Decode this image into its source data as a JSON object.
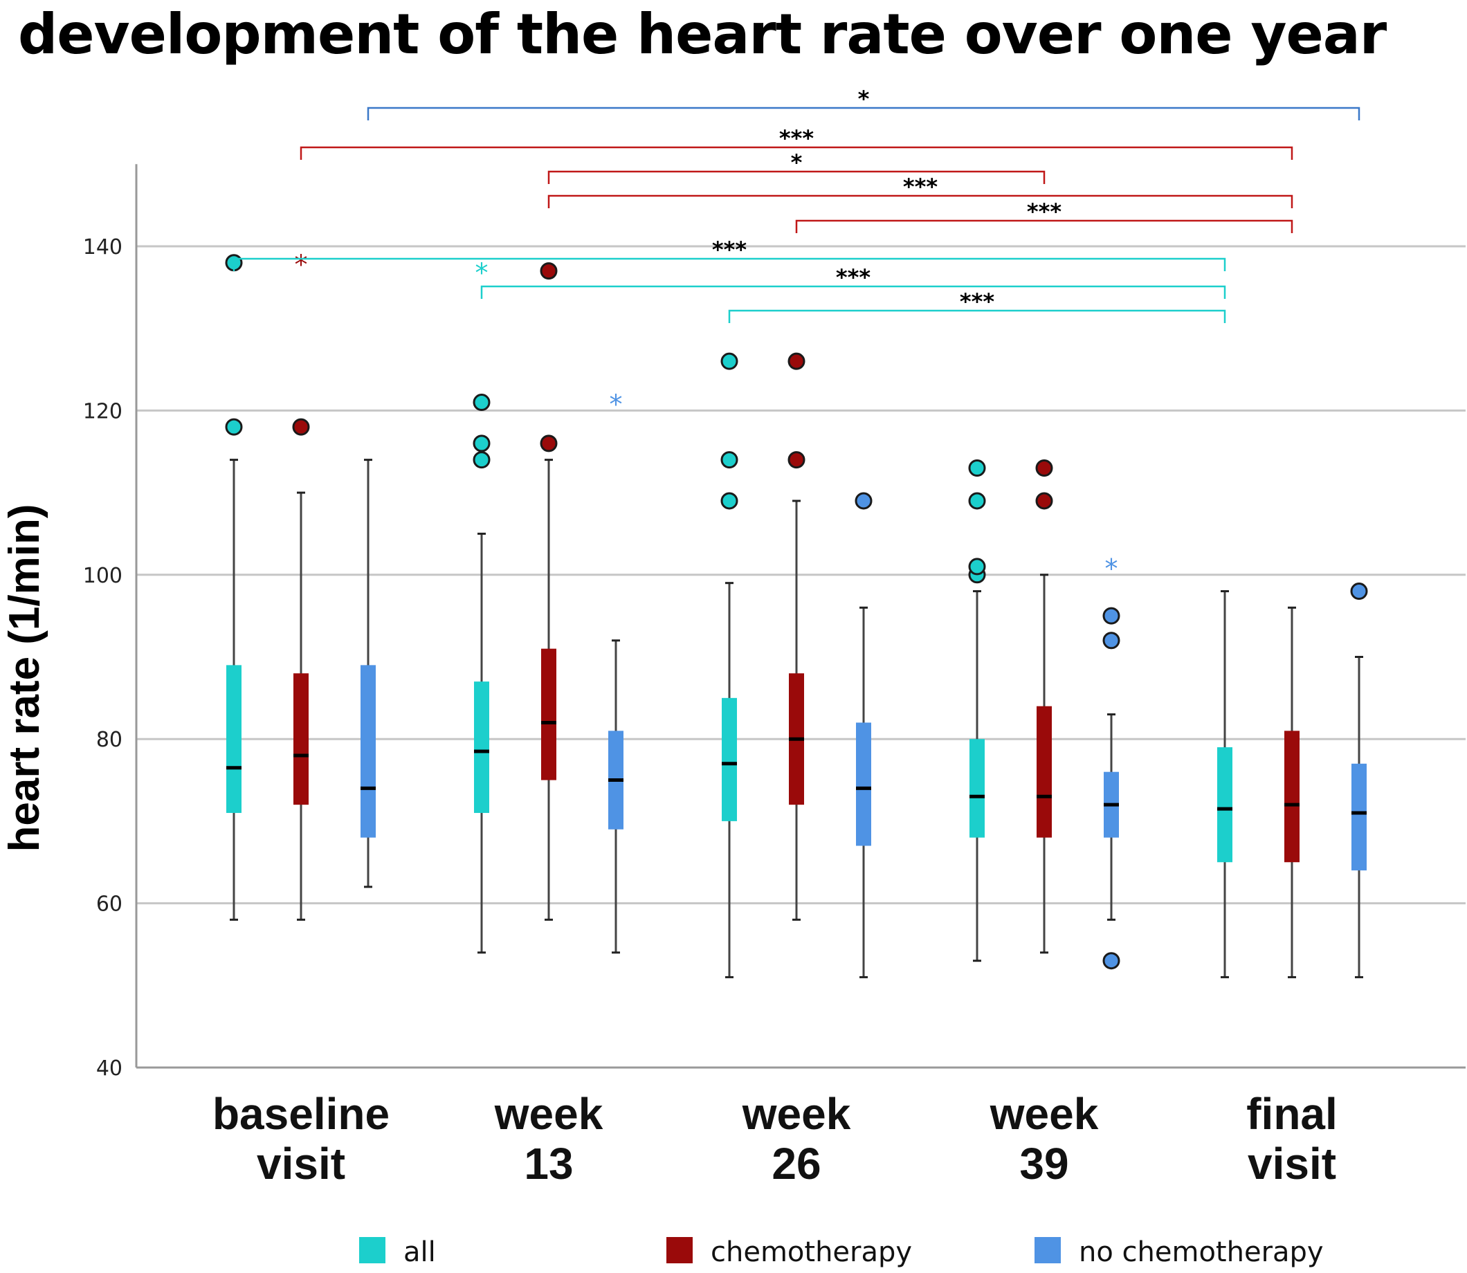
{
  "title": "development of the heart rate over one year",
  "chart_data": {
    "type": "boxplot",
    "title": "development of the heart rate over one year",
    "ylabel": "heart rate  (1/min)",
    "xlabel": "",
    "ylim": [
      40,
      150
    ],
    "yticks": [
      40,
      60,
      80,
      100,
      120,
      140
    ],
    "grid": true,
    "legend_position": "bottom",
    "categories": [
      {
        "line1": "baseline",
        "line2": "visit"
      },
      {
        "line1": "week",
        "line2": "13"
      },
      {
        "line1": "week",
        "line2": "26"
      },
      {
        "line1": "week",
        "line2": "39"
      },
      {
        "line1": "final",
        "line2": "visit"
      }
    ],
    "series": [
      {
        "name": "all",
        "color": "#1ccfcc",
        "boxes": [
          {
            "whisker_low": 58,
            "q1": 71,
            "median": 76.5,
            "q3": 89,
            "whisker_high": 114,
            "outliers": [
              118,
              138
            ],
            "extremes": []
          },
          {
            "whisker_low": 54,
            "q1": 71,
            "median": 78.5,
            "q3": 87,
            "whisker_high": 105,
            "outliers": [
              114,
              116,
              121
            ],
            "extremes": [
              137
            ]
          },
          {
            "whisker_low": 51,
            "q1": 70,
            "median": 77,
            "q3": 85,
            "whisker_high": 99,
            "outliers": [
              109,
              114,
              126
            ],
            "extremes": []
          },
          {
            "whisker_low": 53,
            "q1": 68,
            "median": 73,
            "q3": 80,
            "whisker_high": 98,
            "outliers": [
              100,
              101,
              109,
              113
            ],
            "extremes": []
          },
          {
            "whisker_low": 51,
            "q1": 65,
            "median": 71.5,
            "q3": 79,
            "whisker_high": 98,
            "outliers": [],
            "extremes": []
          }
        ]
      },
      {
        "name": "chemotherapy",
        "color": "#9a0a0a",
        "boxes": [
          {
            "whisker_low": 58,
            "q1": 72,
            "median": 78,
            "q3": 88,
            "whisker_high": 110,
            "outliers": [
              118
            ],
            "extremes": [
              138
            ]
          },
          {
            "whisker_low": 58,
            "q1": 75,
            "median": 82,
            "q3": 91,
            "whisker_high": 114,
            "outliers": [
              116,
              137
            ],
            "extremes": []
          },
          {
            "whisker_low": 58,
            "q1": 72,
            "median": 80,
            "q3": 88,
            "whisker_high": 109,
            "outliers": [
              114,
              126
            ],
            "extremes": []
          },
          {
            "whisker_low": 54,
            "q1": 68,
            "median": 73,
            "q3": 84,
            "whisker_high": 100,
            "outliers": [
              109,
              113
            ],
            "extremes": []
          },
          {
            "whisker_low": 51,
            "q1": 65,
            "median": 72,
            "q3": 81,
            "whisker_high": 96,
            "outliers": [],
            "extremes": []
          }
        ]
      },
      {
        "name": "no chemotherapy",
        "color": "#4f93e4",
        "boxes": [
          {
            "whisker_low": 62,
            "q1": 68,
            "median": 74,
            "q3": 89,
            "whisker_high": 114,
            "outliers": [],
            "extremes": []
          },
          {
            "whisker_low": 54,
            "q1": 69,
            "median": 75,
            "q3": 81,
            "whisker_high": 92,
            "outliers": [],
            "extremes": [
              121
            ]
          },
          {
            "whisker_low": 51,
            "q1": 67,
            "median": 74,
            "q3": 82,
            "whisker_high": 96,
            "outliers": [
              109
            ],
            "extremes": []
          },
          {
            "whisker_low": 58,
            "q1": 68,
            "median": 72,
            "q3": 76,
            "whisker_high": 83,
            "outliers": [
              53,
              92,
              95
            ],
            "extremes": [
              101
            ]
          },
          {
            "whisker_low": 51,
            "q1": 64,
            "median": 71,
            "q3": 77,
            "whisker_high": 90,
            "outliers": [
              98
            ],
            "extremes": []
          }
        ]
      }
    ],
    "significance": [
      {
        "label": "*",
        "from": [
          0,
          2
        ],
        "to": [
          4,
          2
        ],
        "color": "#3a78c8"
      },
      {
        "label": "***",
        "from": [
          0,
          1
        ],
        "to": [
          4,
          1
        ],
        "color": "#c01818"
      },
      {
        "label": "*",
        "from": [
          1,
          1
        ],
        "to": [
          3,
          1
        ],
        "color": "#c01818"
      },
      {
        "label": "***",
        "from": [
          1,
          1
        ],
        "to": [
          4,
          1
        ],
        "color": "#c01818"
      },
      {
        "label": "***",
        "from": [
          2,
          1
        ],
        "to": [
          4,
          1
        ],
        "color": "#c01818"
      },
      {
        "label": "***",
        "from": [
          0,
          0
        ],
        "to": [
          4,
          0
        ],
        "color": "#1ccfcc"
      },
      {
        "label": "***",
        "from": [
          1,
          0
        ],
        "to": [
          4,
          0
        ],
        "color": "#1ccfcc"
      },
      {
        "label": "***",
        "from": [
          2,
          0
        ],
        "to": [
          4,
          0
        ],
        "color": "#1ccfcc"
      }
    ]
  }
}
